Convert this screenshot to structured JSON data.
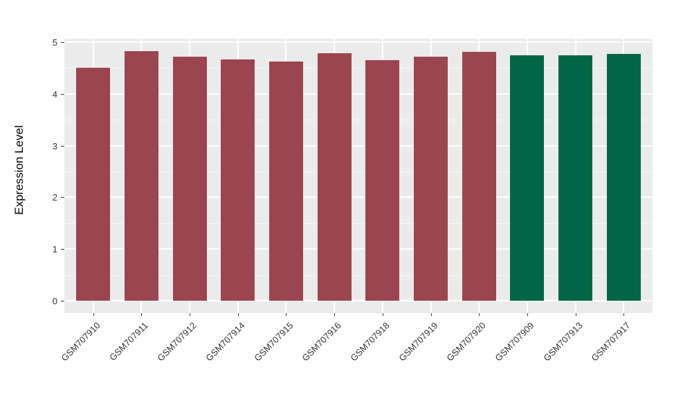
{
  "chart_data": {
    "type": "bar",
    "title": "",
    "xlabel": "",
    "ylabel": "Expression Level",
    "ylim": [
      0,
      5
    ],
    "yticks": [
      0,
      1,
      2,
      3,
      4,
      5
    ],
    "minor_ticks": [
      0.5,
      1.5,
      2.5,
      3.5,
      4.5
    ],
    "grid": "on",
    "legend": "none",
    "categories": [
      "GSM707910",
      "GSM707911",
      "GSM707912",
      "GSM707914",
      "GSM707915",
      "GSM707916",
      "GSM707918",
      "GSM707919",
      "GSM707920",
      "GSM707909",
      "GSM707913",
      "GSM707917"
    ],
    "values": [
      4.5,
      4.82,
      4.72,
      4.66,
      4.63,
      4.79,
      4.65,
      4.72,
      4.81,
      4.74,
      4.74,
      4.77
    ],
    "groups": [
      "group1",
      "group1",
      "group1",
      "group1",
      "group1",
      "group1",
      "group1",
      "group1",
      "group1",
      "group2",
      "group2",
      "group2"
    ],
    "group_colors": {
      "group1": "#9a4550",
      "group2": "#006646"
    },
    "panel_background": "#ebebeb",
    "grid_color": "#ffffff"
  }
}
